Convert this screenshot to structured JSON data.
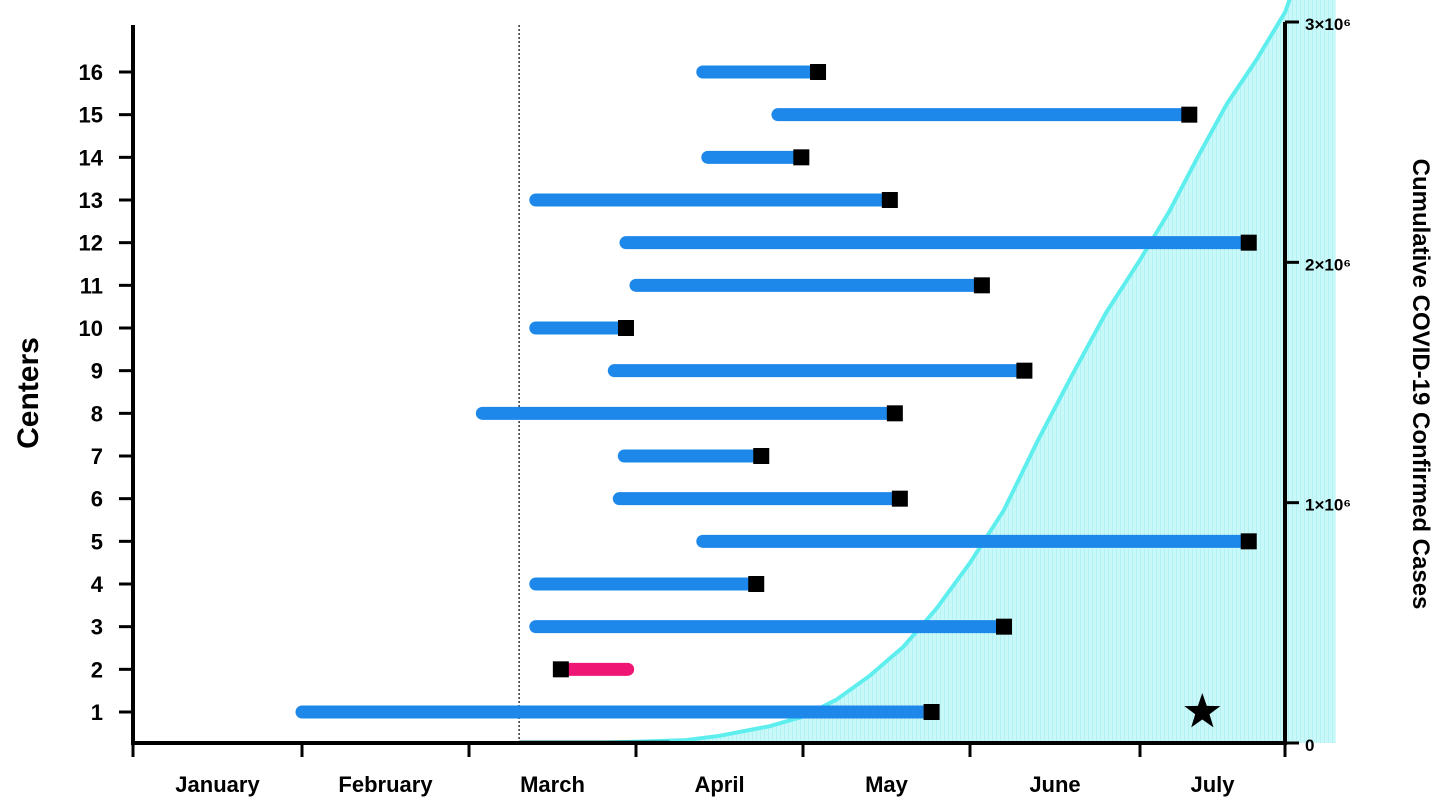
{
  "chart_data": {
    "type": "timeline",
    "title": "",
    "xlabel": "",
    "ylabel": "Centers",
    "y2label": "Cumulative COVID-19 Confirmed Cases",
    "x_ticks": [
      "January",
      "February",
      "March",
      "April",
      "May",
      "June",
      "July"
    ],
    "y_ticks": [
      "1",
      "2",
      "3",
      "4",
      "5",
      "6",
      "7",
      "8",
      "9",
      "10",
      "11",
      "12",
      "13",
      "14",
      "15",
      "16"
    ],
    "y2_ticks": [
      "0",
      "1×10⁶",
      "2×10⁶",
      "3×10⁶"
    ],
    "y2lim": [
      0,
      3000000
    ],
    "xlim_month": [
      0.5,
      7.4
    ],
    "feb_marker_month": 2.3,
    "colors": {
      "bar_blue": "#1e87ea",
      "bar_pink": "#ef1574",
      "end_marker": "#000000",
      "cases_line": "#5eeeee",
      "cases_fill": "#c8f8f8",
      "cases_line_dark": "#1a7a80"
    },
    "centers": [
      {
        "center": 1,
        "start_month": 1.0,
        "end_month": 4.77,
        "color": "blue"
      },
      {
        "center": 2,
        "start_month": 2.95,
        "end_month": 2.55,
        "color": "pink"
      },
      {
        "center": 3,
        "start_month": 2.4,
        "end_month": 5.2,
        "color": "blue"
      },
      {
        "center": 4,
        "start_month": 2.4,
        "end_month": 3.72,
        "color": "blue"
      },
      {
        "center": 5,
        "start_month": 3.4,
        "end_month": 6.75,
        "color": "blue"
      },
      {
        "center": 6,
        "start_month": 2.9,
        "end_month": 4.58,
        "color": "blue"
      },
      {
        "center": 7,
        "start_month": 2.93,
        "end_month": 3.75,
        "color": "blue"
      },
      {
        "center": 8,
        "start_month": 2.08,
        "end_month": 4.55,
        "color": "blue"
      },
      {
        "center": 9,
        "start_month": 2.87,
        "end_month": 5.32,
        "color": "blue"
      },
      {
        "center": 10,
        "start_month": 2.4,
        "end_month": 2.94,
        "color": "blue"
      },
      {
        "center": 11,
        "start_month": 3.0,
        "end_month": 5.07,
        "color": "blue"
      },
      {
        "center": 12,
        "start_month": 2.94,
        "end_month": 6.75,
        "color": "blue"
      },
      {
        "center": 13,
        "start_month": 2.4,
        "end_month": 4.52,
        "color": "blue"
      },
      {
        "center": 14,
        "start_month": 3.43,
        "end_month": 3.99,
        "color": "blue"
      },
      {
        "center": 15,
        "start_month": 3.85,
        "end_month": 6.34,
        "color": "blue"
      },
      {
        "center": 16,
        "start_month": 3.4,
        "end_month": 4.09,
        "color": "blue"
      }
    ],
    "cumulative_cases": {
      "x_month": [
        2.3,
        2.5,
        2.8,
        3.0,
        3.3,
        3.5,
        3.8,
        4.0,
        4.2,
        4.4,
        4.6,
        4.8,
        5.0,
        5.2,
        5.4,
        5.6,
        5.8,
        6.0,
        6.2,
        6.4,
        6.6,
        6.8,
        7.0,
        7.2,
        7.35
      ],
      "y": [
        0,
        500,
        2000,
        5000,
        12000,
        30000,
        70000,
        110000,
        180000,
        280000,
        400000,
        560000,
        750000,
        970000,
        1260000,
        1530000,
        1790000,
        2010000,
        2210000,
        2440000,
        2660000,
        2840000,
        3040000,
        3380000,
        3650000
      ]
    },
    "annotations": [
      {
        "type": "star",
        "center": 1,
        "x_month": 6.43
      }
    ]
  }
}
